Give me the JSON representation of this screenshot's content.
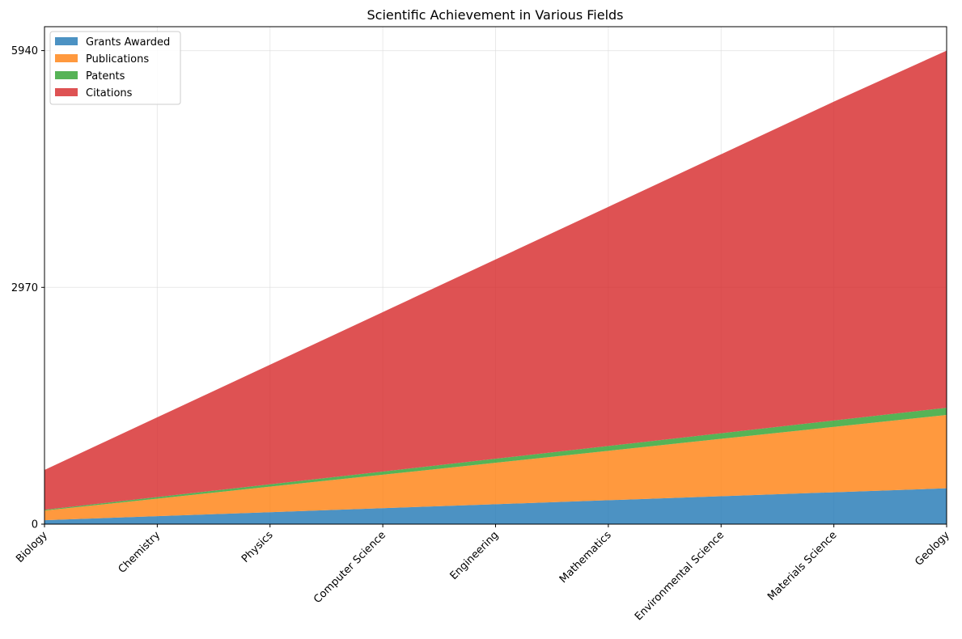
{
  "chart_data": {
    "type": "area",
    "stacked": true,
    "title": "Scientific Achievement in Various Fields",
    "xlabel": "",
    "ylabel": "",
    "categories": [
      "Biology",
      "Chemistry",
      "Physics",
      "Computer Science",
      "Engineering",
      "Mathematics",
      "Environmental Science",
      "Materials Science",
      "Geology"
    ],
    "series": [
      {
        "name": "Grants Awarded",
        "color": "#1f77b4",
        "values": [
          50,
          100,
          150,
          200,
          250,
          300,
          350,
          400,
          450
        ]
      },
      {
        "name": "Publications",
        "color": "#ff7f0e",
        "values": [
          120,
          220,
          320,
          420,
          520,
          620,
          720,
          820,
          920
        ]
      },
      {
        "name": "Patents",
        "color": "#2ca02c",
        "values": [
          10,
          20,
          30,
          40,
          50,
          60,
          70,
          80,
          90
        ]
      },
      {
        "name": "Citations",
        "color": "#d62728",
        "values": [
          500,
          1000,
          1500,
          2000,
          2500,
          3000,
          3500,
          4000,
          4480
        ]
      }
    ],
    "ylim": [
      0,
      6240
    ],
    "yticks": [
      "0",
      "2970",
      "5940"
    ],
    "grid": true,
    "legend_position": "top-left"
  }
}
